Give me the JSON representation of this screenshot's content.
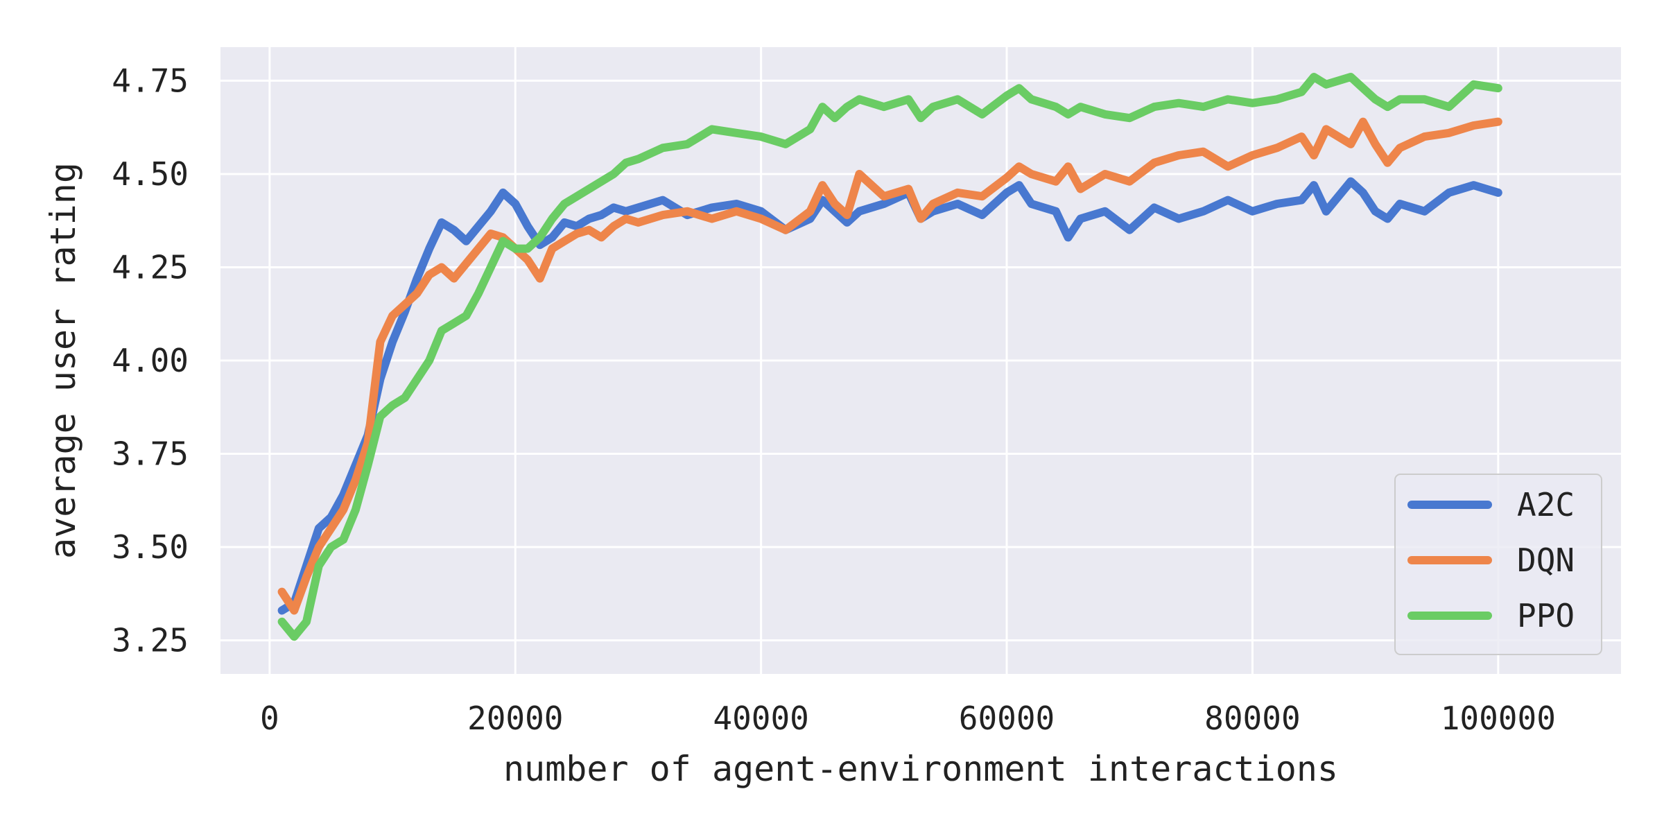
{
  "chart_data": {
    "type": "line",
    "title": "",
    "xlabel": "number of agent-environment interactions",
    "ylabel": "average user rating",
    "xlim": [
      -4000,
      110000
    ],
    "ylim": [
      3.16,
      4.84
    ],
    "xticks": [
      0,
      20000,
      40000,
      60000,
      80000,
      100000
    ],
    "xtick_labels": [
      "0",
      "20000",
      "40000",
      "60000",
      "80000",
      "100000"
    ],
    "yticks": [
      3.25,
      3.5,
      3.75,
      4.0,
      4.25,
      4.5,
      4.75
    ],
    "ytick_labels": [
      "3.25",
      "3.50",
      "3.75",
      "4.00",
      "4.25",
      "4.50",
      "4.75"
    ],
    "grid": true,
    "background": "#eaeaf2",
    "legend_position": "lower-right",
    "x": [
      1000,
      2000,
      3000,
      4000,
      5000,
      6000,
      7000,
      8000,
      9000,
      10000,
      11000,
      12000,
      13000,
      14000,
      15000,
      16000,
      17000,
      18000,
      19000,
      20000,
      21000,
      22000,
      23000,
      24000,
      25000,
      26000,
      27000,
      28000,
      29000,
      30000,
      32000,
      34000,
      36000,
      38000,
      40000,
      42000,
      44000,
      45000,
      46000,
      47000,
      48000,
      50000,
      52000,
      53000,
      54000,
      56000,
      58000,
      60000,
      61000,
      62000,
      64000,
      65000,
      66000,
      68000,
      70000,
      72000,
      74000,
      76000,
      78000,
      80000,
      82000,
      84000,
      85000,
      86000,
      88000,
      89000,
      90000,
      91000,
      92000,
      94000,
      96000,
      98000,
      100000
    ],
    "series": [
      {
        "name": "A2C",
        "color": "#4878d0",
        "values": [
          3.33,
          3.35,
          3.45,
          3.55,
          3.58,
          3.64,
          3.72,
          3.8,
          3.95,
          4.05,
          4.13,
          4.22,
          4.3,
          4.37,
          4.35,
          4.32,
          4.36,
          4.4,
          4.45,
          4.42,
          4.36,
          4.31,
          4.33,
          4.37,
          4.36,
          4.38,
          4.39,
          4.41,
          4.4,
          4.41,
          4.43,
          4.39,
          4.41,
          4.42,
          4.4,
          4.35,
          4.38,
          4.43,
          4.4,
          4.37,
          4.4,
          4.42,
          4.45,
          4.38,
          4.4,
          4.42,
          4.39,
          4.45,
          4.47,
          4.42,
          4.4,
          4.33,
          4.38,
          4.4,
          4.35,
          4.41,
          4.38,
          4.4,
          4.43,
          4.4,
          4.42,
          4.43,
          4.47,
          4.4,
          4.48,
          4.45,
          4.4,
          4.38,
          4.42,
          4.4,
          4.45,
          4.47,
          4.45
        ]
      },
      {
        "name": "DQN",
        "color": "#ee854a",
        "values": [
          3.38,
          3.33,
          3.42,
          3.5,
          3.55,
          3.6,
          3.68,
          3.78,
          4.05,
          4.12,
          4.15,
          4.18,
          4.23,
          4.25,
          4.22,
          4.26,
          4.3,
          4.34,
          4.33,
          4.3,
          4.27,
          4.22,
          4.3,
          4.32,
          4.34,
          4.35,
          4.33,
          4.36,
          4.38,
          4.37,
          4.39,
          4.4,
          4.38,
          4.4,
          4.38,
          4.35,
          4.4,
          4.47,
          4.42,
          4.39,
          4.5,
          4.44,
          4.46,
          4.38,
          4.42,
          4.45,
          4.44,
          4.49,
          4.52,
          4.5,
          4.48,
          4.52,
          4.46,
          4.5,
          4.48,
          4.53,
          4.55,
          4.56,
          4.52,
          4.55,
          4.57,
          4.6,
          4.55,
          4.62,
          4.58,
          4.64,
          4.58,
          4.53,
          4.57,
          4.6,
          4.61,
          4.63,
          4.64
        ]
      },
      {
        "name": "PPO",
        "color": "#6acc64",
        "values": [
          3.3,
          3.26,
          3.3,
          3.45,
          3.5,
          3.52,
          3.6,
          3.72,
          3.85,
          3.88,
          3.9,
          3.95,
          4.0,
          4.08,
          4.1,
          4.12,
          4.18,
          4.25,
          4.32,
          4.3,
          4.3,
          4.33,
          4.38,
          4.42,
          4.44,
          4.46,
          4.48,
          4.5,
          4.53,
          4.54,
          4.57,
          4.58,
          4.62,
          4.61,
          4.6,
          4.58,
          4.62,
          4.68,
          4.65,
          4.68,
          4.7,
          4.68,
          4.7,
          4.65,
          4.68,
          4.7,
          4.66,
          4.71,
          4.73,
          4.7,
          4.68,
          4.66,
          4.68,
          4.66,
          4.65,
          4.68,
          4.69,
          4.68,
          4.7,
          4.69,
          4.7,
          4.72,
          4.76,
          4.74,
          4.76,
          4.73,
          4.7,
          4.68,
          4.7,
          4.7,
          4.68,
          4.74,
          4.73
        ]
      }
    ]
  }
}
